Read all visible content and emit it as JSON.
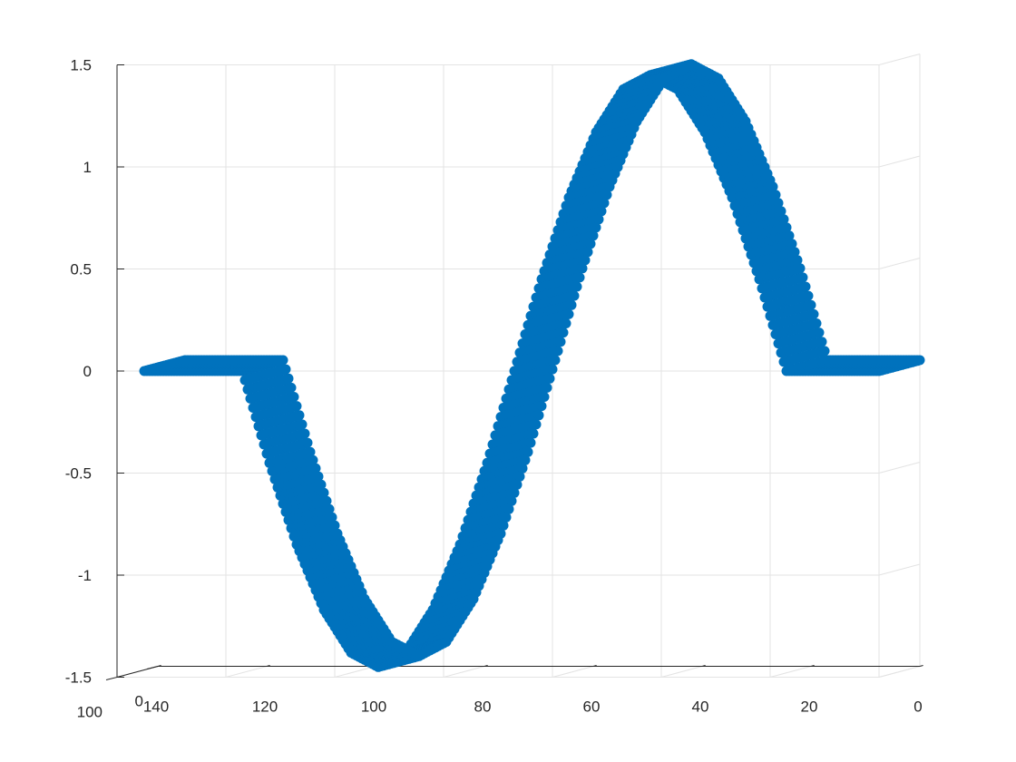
{
  "chart_data": {
    "type": "scatter",
    "view": "3d",
    "title": "",
    "xlabel": "",
    "ylabel": "",
    "zlabel": "",
    "xlim": [
      0,
      140
    ],
    "ylim": [
      0,
      100
    ],
    "zlim": [
      -1.5,
      1.5
    ],
    "x_ticks": [
      0,
      20,
      40,
      60,
      80,
      100,
      120,
      140
    ],
    "x_tick_labels": [
      "0",
      "20",
      "40",
      "60",
      "80",
      "100",
      "120",
      "140"
    ],
    "y_ticks": [
      0,
      100
    ],
    "y_tick_labels": [
      "0",
      "100"
    ],
    "z_ticks": [
      -1.5,
      -1,
      -0.5,
      0,
      0.5,
      1,
      1.5
    ],
    "z_tick_labels": [
      "-1.5",
      "-1",
      "-0.5",
      "0",
      "0.5",
      "1",
      "1.5"
    ],
    "grid": true,
    "legend": "none",
    "marker": "filled circle",
    "color": "#0072BD",
    "series": [
      {
        "description": "one period of a sine wave (amplitude about 1.45) between x = 17 and x = 117, zero elsewhere; repeated across y from 0 to 100",
        "x": [
          0,
          10,
          17,
          22,
          27,
          32,
          37,
          42,
          47,
          52,
          57,
          62,
          67,
          72,
          77,
          82,
          87,
          92,
          97,
          102,
          107,
          112,
          117,
          125,
          135
        ],
        "z": [
          0,
          0,
          0,
          0.45,
          0.85,
          1.17,
          1.38,
          1.45,
          1.38,
          1.17,
          0.85,
          0.45,
          0,
          -0.45,
          -0.85,
          -1.17,
          -1.38,
          -1.45,
          -1.38,
          -1.17,
          -0.85,
          -0.45,
          0,
          0,
          0
        ]
      }
    ]
  }
}
